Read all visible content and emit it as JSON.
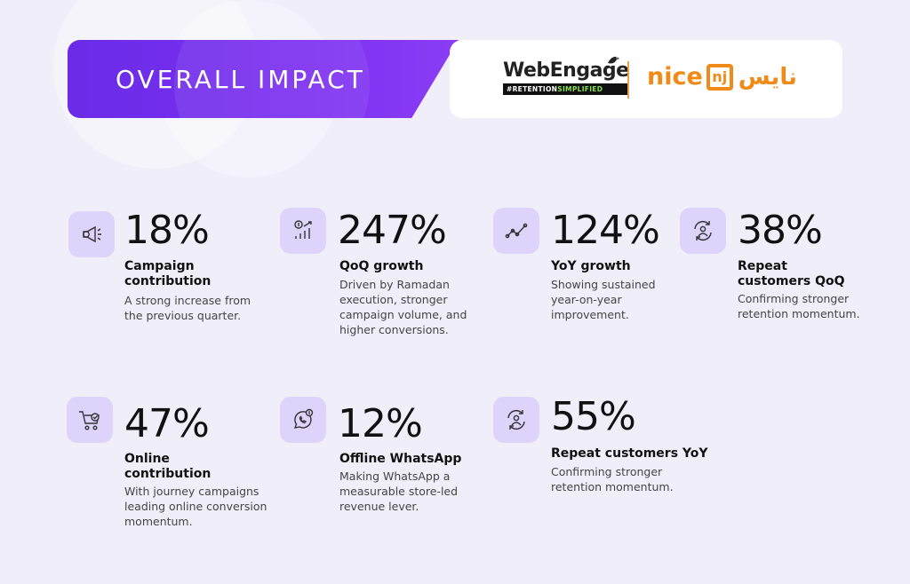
{
  "header": {
    "title": "OVERALL IMPACT",
    "webengage": {
      "name": "WebEngage",
      "tag_prefix": "#RETENTION",
      "tag_highlight": "SIMPLIFIED"
    },
    "nice": {
      "latin": "nice",
      "box_letter": "nj",
      "arabic": "نايس"
    }
  },
  "stats": [
    {
      "value": "18%",
      "label": "Campaign contribution",
      "desc": "A strong increase from the previous quarter.",
      "icon": "megaphone-icon"
    },
    {
      "value": "247%",
      "label": "QoQ growth",
      "desc": "Driven by Ramadan execution, stronger campaign volume, and higher conversions.",
      "icon": "growth-chart-icon"
    },
    {
      "value": "124%",
      "label": "YoY growth",
      "desc": "Showing sustained year-on-year improvement.",
      "icon": "trend-line-icon"
    },
    {
      "value": "38%",
      "label": "Repeat customers QoQ",
      "desc": "Confirming stronger retention momentum.",
      "icon": "repeat-customer-icon"
    },
    {
      "value": "47%",
      "label": "Online contribution",
      "desc": "With journey campaigns leading online conversion momentum.",
      "icon": "cart-icon"
    },
    {
      "value": "12%",
      "label": "Offline WhatsApp",
      "desc": "Making WhatsApp a measurable store-led revenue lever.",
      "icon": "whatsapp-icon"
    },
    {
      "value": "55%",
      "label": "Repeat customers YoY",
      "desc": "Confirming stronger retention momentum.",
      "icon": "repeat-customer-icon"
    }
  ],
  "colors": {
    "accent": "#6a2ce8",
    "icon_bg": "#ddd3fb",
    "brand_orange": "#f08a18"
  }
}
